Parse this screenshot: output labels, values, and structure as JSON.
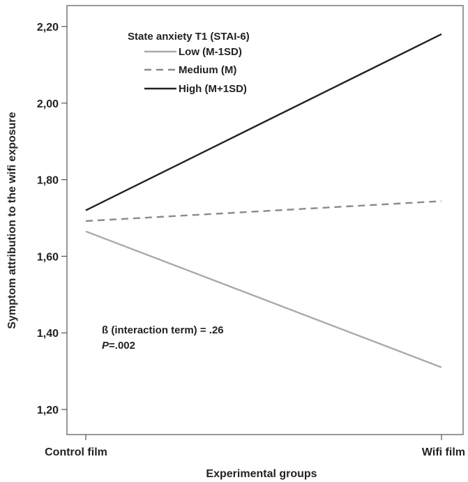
{
  "chart_data": {
    "type": "line",
    "x": [
      "Control film",
      "Wifi film"
    ],
    "xlabel": "Experimental groups",
    "ylabel": "Symptom attribution to the wifi exposure",
    "ylim": [
      1.18,
      2.26
    ],
    "yticks": [
      1.2,
      1.4,
      1.6,
      1.8,
      2.0,
      2.2
    ],
    "ytick_labels": [
      "1,20",
      "1,40",
      "1,60",
      "1,80",
      "2,00",
      "2,20"
    ],
    "legend": {
      "title": "State anxiety T1 (STAI-6)",
      "placement": "top-left"
    },
    "series": [
      {
        "name": "Low (M-1SD)",
        "values": [
          1.665,
          1.31
        ],
        "color": "#aaaaaa",
        "dash": "solid"
      },
      {
        "name": "Medium (M)",
        "values": [
          1.692,
          1.744
        ],
        "color": "#8a8a8a",
        "dash": "dashed"
      },
      {
        "name": "High (M+1SD)",
        "values": [
          1.72,
          2.18
        ],
        "color": "#222222",
        "dash": "solid"
      }
    ],
    "annotations": {
      "beta": "ß (interaction term) = .26",
      "p_label": "P",
      "p_value": "=.002"
    },
    "grid": false
  }
}
